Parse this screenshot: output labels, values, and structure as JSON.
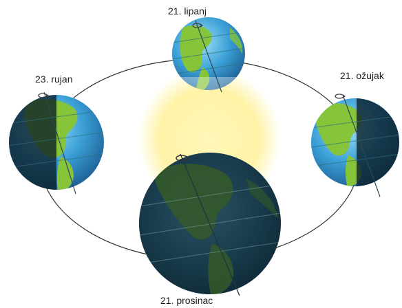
{
  "labels": {
    "june": "21. lipanj",
    "september": "23. rujan",
    "march": "21. ožujak",
    "december": "21. prosinac"
  },
  "colors": {
    "ocean_light": "#7fd0f0",
    "ocean_mid": "#3a9fd6",
    "ocean_dark": "#1d5f93",
    "land": "#86c43a",
    "night_shade": "#0b1d26",
    "sun_glow": "#fff3a8",
    "orbit": "#333333"
  },
  "icons": {
    "rotation_arrow": "rotation-arrow-icon",
    "sun": "sun-glow",
    "orbit": "orbit-ellipse"
  }
}
